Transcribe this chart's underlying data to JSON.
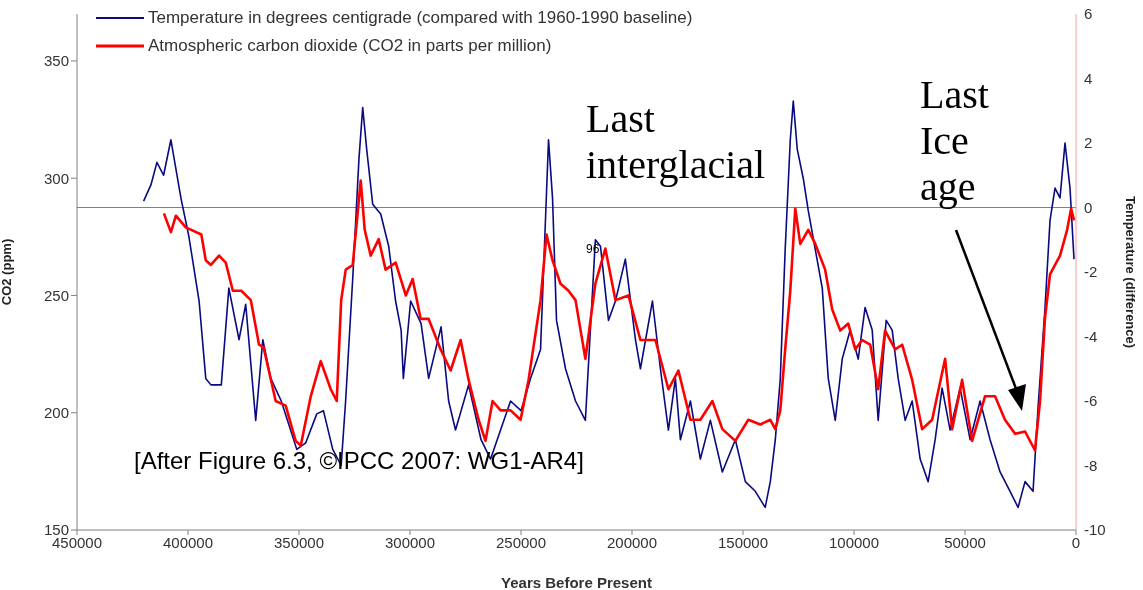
{
  "chart_data": {
    "type": "line",
    "xlabel": "Years Before Present",
    "ylabel": "CO2 (ppm)",
    "y2label": "Temperature (difference)",
    "xlim": [
      450000,
      0
    ],
    "xticks": [
      450000,
      400000,
      350000,
      300000,
      250000,
      200000,
      150000,
      100000,
      50000,
      0
    ],
    "ylim": [
      150,
      370
    ],
    "yticks": [
      150,
      200,
      250,
      300,
      350
    ],
    "y2lim": [
      -10,
      6
    ],
    "y2ticks": [
      -10,
      -8,
      -6,
      -4,
      -2,
      0,
      2,
      4,
      6
    ],
    "legend": "top left",
    "marker": "none",
    "line_style": "solid",
    "grid": false,
    "ref_lines": [
      {
        "axis": "y2",
        "value": 0,
        "color": "#808080"
      }
    ],
    "annotations": [
      "Last interglacial",
      "Last Ice age",
      "[After Figure 6.3, ©IPCC 2007: WG1-AR4]",
      "96"
    ],
    "series": [
      {
        "name": "Temperature in degrees centigrade (compared with 1960-1990 baseline)",
        "color": "#0a0a80",
        "axis": "y2",
        "x": [
          420000,
          416700,
          414000,
          411000,
          407700,
          403200,
          399600,
          395000,
          392000,
          389700,
          385000,
          381600,
          377000,
          374000,
          369500,
          366300,
          362700,
          358000,
          351000,
          347000,
          342000,
          339000,
          334800,
          331000,
          329000,
          325800,
          323000,
          321300,
          319500,
          316800,
          313200,
          309600,
          306500,
          304000,
          303000,
          299700,
          295000,
          291600,
          286000,
          282600,
          279500,
          273600,
          268000,
          263700,
          259200,
          254700,
          250000,
          245700,
          241200,
          237600,
          235800,
          234000,
          229950,
          225450,
          221000,
          216500,
          214200,
          210600,
          207450,
          203000,
          198450,
          196200,
          190800,
          187200,
          183600,
          180450,
          178200,
          173700,
          169200,
          164700,
          159300,
          153450,
          148950,
          144450,
          140000,
          137700,
          135450,
          133200,
          131000,
          128700,
          127350,
          125550,
          122850,
          120600,
          117450,
          114300,
          111600,
          108450,
          105300,
          101700,
          98100,
          95000,
          91800,
          89100,
          85500,
          82800,
          80100,
          76950,
          73800,
          70200,
          66600,
          63450,
          60300,
          56700,
          52200,
          47700,
          43200,
          38700,
          34200,
          29700,
          26100,
          22950,
          19350,
          17100,
          13950,
          11700,
          9450,
          7200,
          4950,
          2700,
          900
        ],
        "values": [
          0.2,
          0.7,
          1.4,
          1.0,
          2.1,
          0.3,
          -0.9,
          -2.9,
          -5.3,
          -5.5,
          -5.5,
          -2.5,
          -4.1,
          -3.0,
          -6.6,
          -4.1,
          -5.3,
          -6.0,
          -7.5,
          -7.3,
          -6.4,
          -6.3,
          -7.5,
          -8.0,
          -6.0,
          -2.2,
          1.5,
          3.1,
          1.8,
          0.1,
          -0.2,
          -1.2,
          -2.9,
          -3.8,
          -5.3,
          -2.9,
          -3.6,
          -5.3,
          -3.7,
          -6.0,
          -6.9,
          -5.5,
          -7.2,
          -7.8,
          -6.9,
          -6.0,
          -6.3,
          -5.3,
          -4.4,
          2.1,
          0.3,
          -3.5,
          -5.0,
          -6.0,
          -6.6,
          -1.0,
          -1.2,
          -3.5,
          -2.9,
          -1.6,
          -4.1,
          -5.0,
          -2.9,
          -5.0,
          -6.9,
          -5.3,
          -7.2,
          -6.0,
          -7.8,
          -6.6,
          -8.2,
          -7.2,
          -8.5,
          -8.8,
          -9.3,
          -8.5,
          -7.2,
          -5.3,
          -1.3,
          2.1,
          3.3,
          1.8,
          0.9,
          -0.1,
          -1.3,
          -2.5,
          -5.3,
          -6.6,
          -4.7,
          -3.8,
          -4.7,
          -3.1,
          -3.8,
          -6.6,
          -3.5,
          -3.8,
          -5.3,
          -6.6,
          -6.0,
          -7.8,
          -8.5,
          -7.2,
          -5.6,
          -6.9,
          -5.6,
          -7.2,
          -6.0,
          -7.2,
          -8.2,
          -8.8,
          -9.3,
          -8.5,
          -8.8,
          -6.2,
          -3.1,
          -0.4,
          0.6,
          0.3,
          2.0,
          0.6,
          -1.6
        ]
      },
      {
        "name": "Atmospheric carbon dioxide (CO2 in parts per million)",
        "color": "#ff0000",
        "x": [
          410850,
          407700,
          405450,
          401000,
          394000,
          392000,
          389700,
          386000,
          383000,
          379800,
          376000,
          371700,
          368000,
          366000,
          360500,
          356000,
          351500,
          349200,
          344700,
          340200,
          335700,
          333000,
          331000,
          328950,
          325800,
          322200,
          320400,
          317700,
          314100,
          311000,
          306450,
          301900,
          298800,
          295200,
          291600,
          286200,
          281700,
          277200,
          273600,
          269100,
          266000,
          262800,
          259200,
          254700,
          250200,
          246600,
          241200,
          238500,
          235800,
          232200,
          228600,
          225450,
          221000,
          216500,
          212000,
          207450,
          201600,
          196200,
          192600,
          189450,
          187200,
          183600,
          179100,
          173700,
          169200,
          163800,
          159300,
          153450,
          147600,
          142200,
          137700,
          135450,
          133200,
          131000,
          128700,
          126450,
          124200,
          120600,
          117450,
          113000,
          109800,
          106200,
          102600,
          99450,
          96300,
          92700,
          89100,
          86000,
          81450,
          78300,
          73800,
          69300,
          64800,
          58950,
          55800,
          51300,
          46800,
          41000,
          36450,
          32000,
          27450,
          22950,
          18500,
          16200,
          14000,
          11700,
          9450,
          7200,
          4000,
          2200,
          900
        ],
        "values": [
          285,
          277,
          284,
          279,
          276,
          265,
          263,
          267,
          264,
          252,
          252,
          248,
          229,
          228,
          205,
          203,
          188,
          186,
          207,
          222,
          210,
          205,
          248,
          261,
          263,
          299,
          278,
          267,
          274,
          261,
          264,
          250,
          257,
          240,
          240,
          227,
          218,
          231,
          214,
          197,
          188,
          205,
          201,
          201,
          197,
          214,
          248,
          276,
          265,
          255,
          252,
          248,
          223,
          255,
          270,
          248,
          250,
          231,
          231,
          231,
          223,
          210,
          218,
          197,
          197,
          205,
          193,
          188,
          197,
          195,
          197,
          193,
          201,
          227,
          252,
          287,
          272,
          278,
          272,
          261,
          244,
          235,
          238,
          227,
          231,
          229,
          210,
          235,
          227,
          229,
          214,
          193,
          197,
          223,
          193,
          214,
          188,
          207,
          207,
          197,
          191,
          192,
          184,
          205,
          240,
          259,
          263,
          267,
          278,
          287,
          282
        ]
      }
    ]
  }
}
